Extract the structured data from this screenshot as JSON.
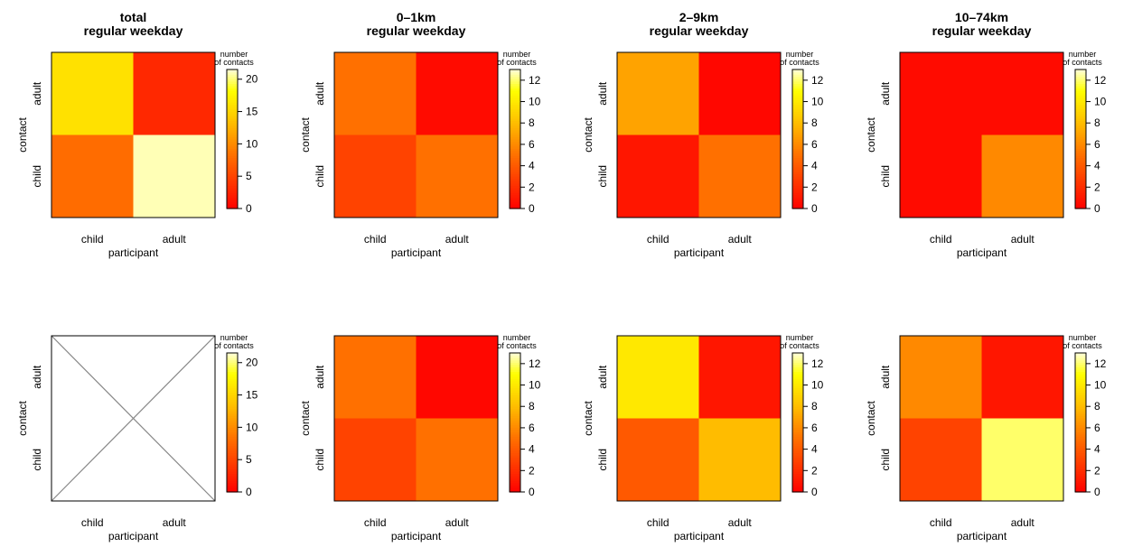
{
  "chart_data": [
    {
      "type": "heatmap",
      "title": [
        "total",
        "regular weekday"
      ],
      "xlabel": "participant",
      "ylabel": "contact",
      "x_categories": [
        "child",
        "adult"
      ],
      "y_categories": [
        "child",
        "adult"
      ],
      "values": [
        [
          16,
          3
        ],
        [
          8,
          21
        ]
      ],
      "colorbar": {
        "title": [
          "number",
          "of contacts"
        ],
        "ticks": [
          "0",
          "5",
          "10",
          "15",
          "20"
        ],
        "range": [
          0,
          21.5
        ]
      }
    },
    {
      "type": "heatmap",
      "title": [
        "0–1km",
        "regular weekday"
      ],
      "xlabel": "participant",
      "ylabel": "contact",
      "x_categories": [
        "child",
        "adult"
      ],
      "y_categories": [
        "child",
        "adult"
      ],
      "values": [
        [
          5,
          0.5
        ],
        [
          3,
          5
        ]
      ],
      "colorbar": {
        "title": [
          "number",
          "of contacts"
        ],
        "ticks": [
          "0",
          "2",
          "4",
          "6",
          "8",
          "10",
          "12"
        ],
        "range": [
          0,
          13
        ]
      }
    },
    {
      "type": "heatmap",
      "title": [
        "2–9km",
        "regular weekday"
      ],
      "xlabel": "participant",
      "ylabel": "contact",
      "x_categories": [
        "child",
        "adult"
      ],
      "y_categories": [
        "child",
        "adult"
      ],
      "values": [
        [
          7,
          0.3
        ],
        [
          1,
          5
        ]
      ],
      "colorbar": {
        "title": [
          "number",
          "of contacts"
        ],
        "ticks": [
          "0",
          "2",
          "4",
          "6",
          "8",
          "10",
          "12"
        ],
        "range": [
          0,
          13
        ]
      }
    },
    {
      "type": "heatmap",
      "title": [
        "10–74km",
        "regular weekday"
      ],
      "xlabel": "participant",
      "ylabel": "contact",
      "x_categories": [
        "child",
        "adult"
      ],
      "y_categories": [
        "child",
        "adult"
      ],
      "values": [
        [
          0.5,
          0.5
        ],
        [
          0.5,
          6
        ]
      ],
      "colorbar": {
        "title": [
          "number",
          "of contacts"
        ],
        "ticks": [
          "0",
          "2",
          "4",
          "6",
          "8",
          "10",
          "12"
        ],
        "range": [
          0,
          13
        ]
      }
    },
    {
      "type": "heatmap",
      "empty": true,
      "xlabel": "participant",
      "ylabel": "contact",
      "x_categories": [
        "child",
        "adult"
      ],
      "y_categories": [
        "child",
        "adult"
      ],
      "values": [],
      "colorbar": {
        "title": [
          "number",
          "of contacts"
        ],
        "ticks": [
          "0",
          "5",
          "10",
          "15",
          "20"
        ],
        "range": [
          0,
          21.5
        ]
      }
    },
    {
      "type": "heatmap",
      "xlabel": "participant",
      "ylabel": "contact",
      "x_categories": [
        "child",
        "adult"
      ],
      "y_categories": [
        "child",
        "adult"
      ],
      "values": [
        [
          5,
          0.3
        ],
        [
          3,
          5
        ]
      ],
      "colorbar": {
        "title": [
          "number",
          "of contacts"
        ],
        "ticks": [
          "0",
          "2",
          "4",
          "6",
          "8",
          "10",
          "12"
        ],
        "range": [
          0,
          13
        ]
      }
    },
    {
      "type": "heatmap",
      "xlabel": "participant",
      "ylabel": "contact",
      "x_categories": [
        "child",
        "adult"
      ],
      "y_categories": [
        "child",
        "adult"
      ],
      "values": [
        [
          10,
          1
        ],
        [
          4,
          8
        ]
      ],
      "colorbar": {
        "title": [
          "number",
          "of contacts"
        ],
        "ticks": [
          "0",
          "2",
          "4",
          "6",
          "8",
          "10",
          "12"
        ],
        "range": [
          0,
          13
        ]
      }
    },
    {
      "type": "heatmap",
      "xlabel": "participant",
      "ylabel": "contact",
      "x_categories": [
        "child",
        "adult"
      ],
      "y_categories": [
        "child",
        "adult"
      ],
      "values": [
        [
          6,
          1
        ],
        [
          3,
          12
        ]
      ],
      "colorbar": {
        "title": [
          "number",
          "of contacts"
        ],
        "ticks": [
          "0",
          "2",
          "4",
          "6",
          "8",
          "10",
          "12"
        ],
        "range": [
          0,
          13
        ]
      }
    }
  ]
}
